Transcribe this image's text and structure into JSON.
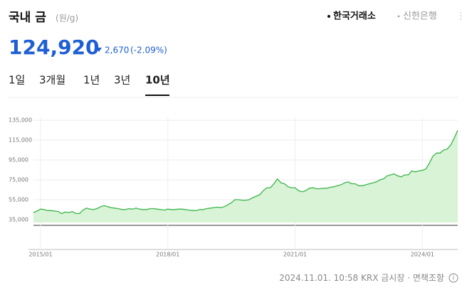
{
  "header": {
    "title": "국내 금",
    "unit": "(원/g)",
    "sources": [
      "한국거래소",
      "신한은행"
    ],
    "price": "124,920",
    "change": "2,670",
    "change_pct": "(-2.09%)",
    "tabs": [
      "1일",
      "3개월",
      "1년",
      "3년",
      "10년"
    ]
  },
  "footer": {
    "timestamp": "2024.11.01. 10:58 KRX 금시장",
    "disclaimer": "면책조항"
  },
  "chart_data": {
    "type": "area",
    "color": "#3bb54a",
    "x": [
      "2014/11",
      "2014/12",
      "2015/01",
      "2015/02",
      "2015/03",
      "2015/04",
      "2015/05",
      "2015/06",
      "2015/07",
      "2015/08",
      "2015/09",
      "2015/10",
      "2015/11",
      "2015/12",
      "2016/01",
      "2016/02",
      "2016/03",
      "2016/04",
      "2016/05",
      "2016/06",
      "2016/07",
      "2016/08",
      "2016/09",
      "2016/10",
      "2016/11",
      "2016/12",
      "2017/01",
      "2017/02",
      "2017/03",
      "2017/04",
      "2017/05",
      "2017/06",
      "2017/07",
      "2017/08",
      "2017/09",
      "2017/10",
      "2017/11",
      "2017/12",
      "2018/01",
      "2018/02",
      "2018/03",
      "2018/04",
      "2018/05",
      "2018/06",
      "2018/07",
      "2018/08",
      "2018/09",
      "2018/10",
      "2018/11",
      "2018/12",
      "2019/01",
      "2019/02",
      "2019/03",
      "2019/04",
      "2019/05",
      "2019/06",
      "2019/07",
      "2019/08",
      "2019/09",
      "2019/10",
      "2019/11",
      "2019/12",
      "2020/01",
      "2020/02",
      "2020/03",
      "2020/04",
      "2020/05",
      "2020/06",
      "2020/07",
      "2020/08",
      "2020/09",
      "2020/10",
      "2020/11",
      "2020/12",
      "2021/01",
      "2021/02",
      "2021/03",
      "2021/04",
      "2021/05",
      "2021/06",
      "2021/07",
      "2021/08",
      "2021/09",
      "2021/10",
      "2021/11",
      "2021/12",
      "2022/01",
      "2022/02",
      "2022/03",
      "2022/04",
      "2022/05",
      "2022/06",
      "2022/07",
      "2022/08",
      "2022/09",
      "2022/10",
      "2022/11",
      "2022/12",
      "2023/01",
      "2023/02",
      "2023/03",
      "2023/04",
      "2023/05",
      "2023/06",
      "2023/07",
      "2023/08",
      "2023/09",
      "2023/10",
      "2023/11",
      "2023/12",
      "2024/01",
      "2024/02",
      "2024/03",
      "2024/04",
      "2024/05",
      "2024/06",
      "2024/07",
      "2024/08",
      "2024/09",
      "2024/10",
      "2024/11"
    ],
    "values": [
      42000,
      43500,
      45500,
      45000,
      44000,
      44000,
      43500,
      43000,
      41000,
      42500,
      42000,
      43000,
      41000,
      41000,
      44500,
      46500,
      45500,
      45000,
      46000,
      48000,
      49000,
      48000,
      47000,
      46500,
      46000,
      45000,
      45000,
      46000,
      45500,
      46500,
      45500,
      45000,
      45000,
      46000,
      46000,
      45500,
      45000,
      44500,
      45500,
      45000,
      45000,
      45500,
      45500,
      45000,
      44500,
      44000,
      44000,
      45000,
      45000,
      46000,
      46500,
      47000,
      47500,
      47000,
      48000,
      50000,
      52000,
      55000,
      55000,
      54500,
      54500,
      55000,
      57000,
      58500,
      60000,
      64000,
      67000,
      67000,
      71000,
      76000,
      72000,
      71000,
      68000,
      67000,
      67000,
      64000,
      63000,
      64000,
      66500,
      67000,
      66000,
      66000,
      66500,
      66500,
      67500,
      68000,
      69000,
      70000,
      72000,
      73000,
      71000,
      71000,
      69000,
      69000,
      70000,
      71000,
      72000,
      73000,
      75000,
      76000,
      79000,
      80000,
      81000,
      79000,
      78000,
      80000,
      80000,
      84000,
      83000,
      84000,
      84500,
      86000,
      92000,
      99000,
      102000,
      102000,
      105000,
      106000,
      110000,
      117000,
      124920
    ],
    "xlim": [
      "2014/11",
      "2024/11"
    ],
    "xticks": [
      "2015/01",
      "2018/01",
      "2021/01",
      "2024/01"
    ],
    "ylim": [
      32000,
      138000
    ],
    "yticks": [
      {
        "value": 35000,
        "label": "35,000"
      },
      {
        "value": 55000,
        "label": "55,000"
      },
      {
        "value": 75000,
        "label": "75,000"
      },
      {
        "value": 95000,
        "label": "95,000"
      },
      {
        "value": 115000,
        "label": "115,000"
      },
      {
        "value": 135000,
        "label": "135,000"
      }
    ],
    "grid": true
  }
}
